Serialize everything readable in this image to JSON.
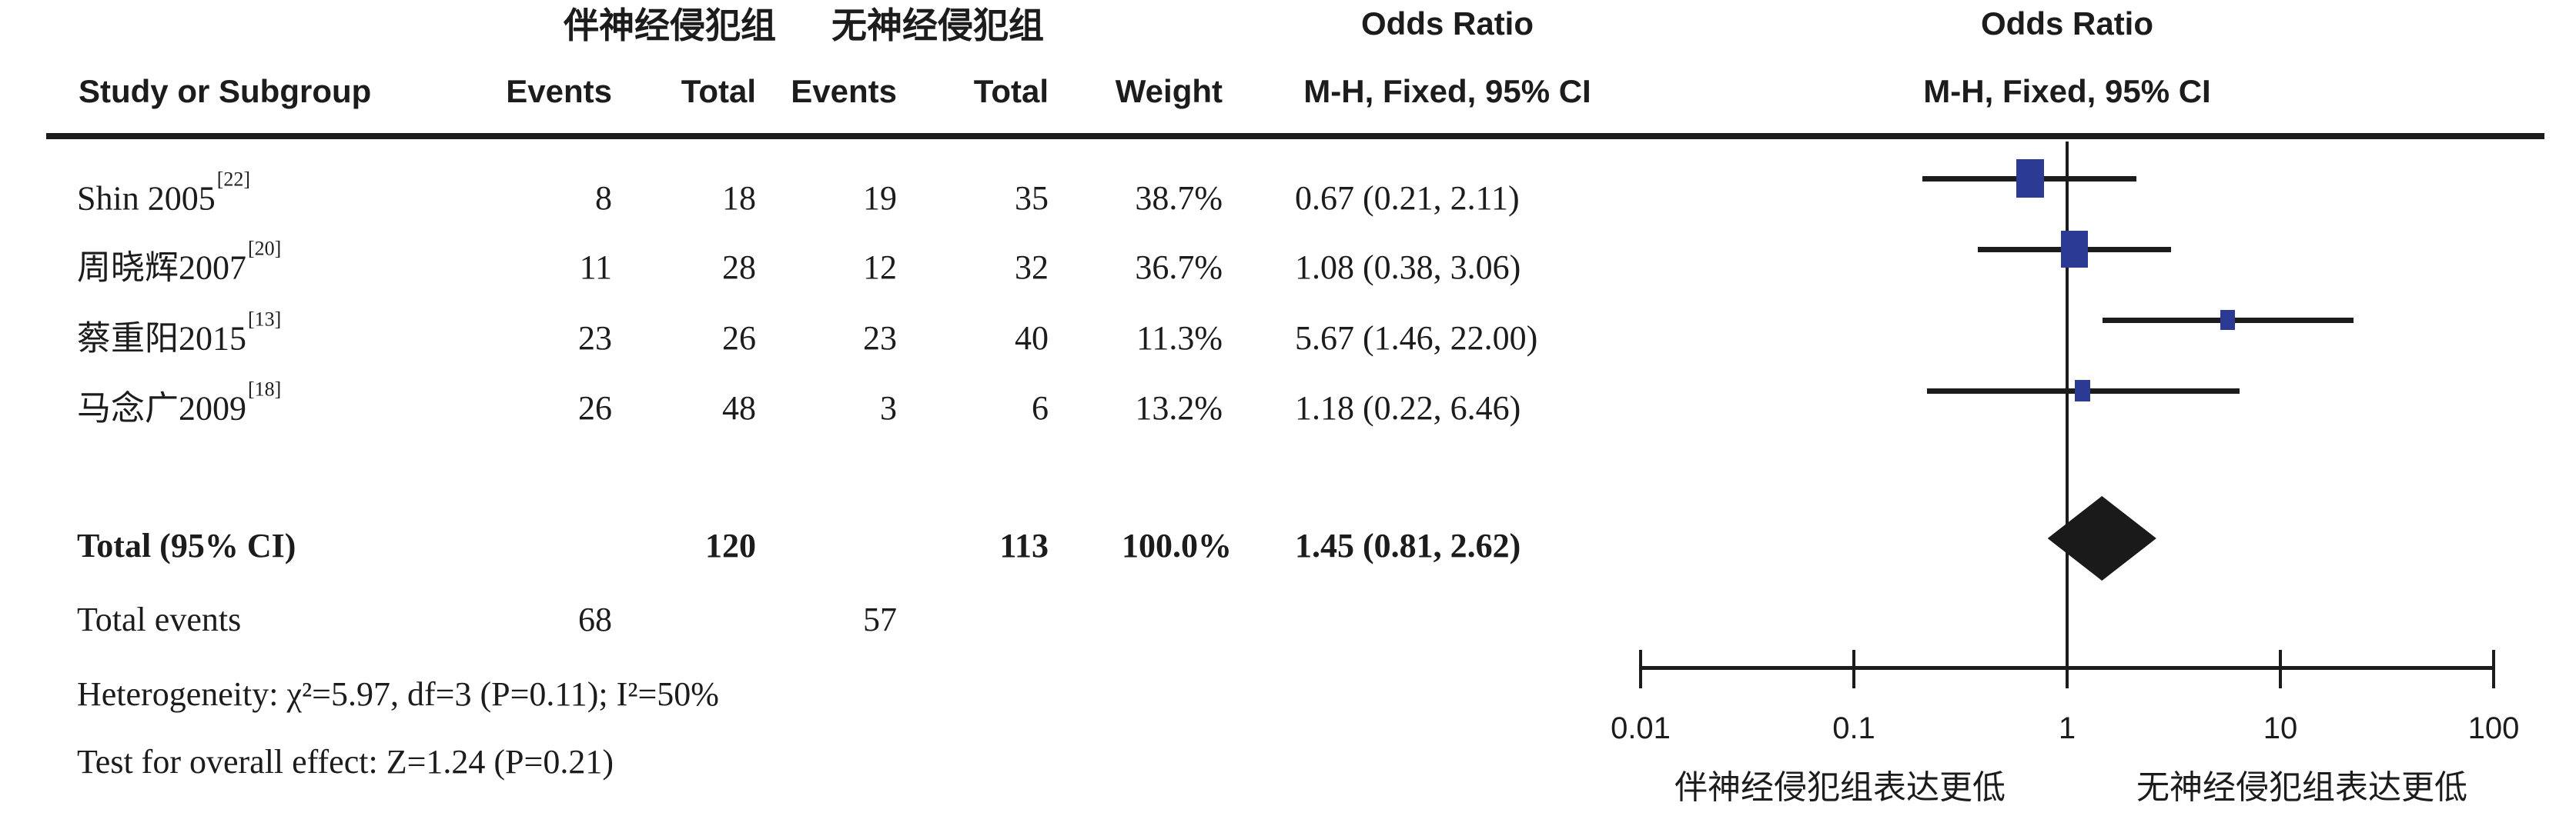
{
  "table": {
    "header": {
      "group1": "伴神经侵犯组",
      "group2": "无神经侵犯组",
      "study": "Study or Subgroup",
      "events": "Events",
      "total": "Total",
      "weight": "Weight",
      "odds_ratio": "Odds Ratio",
      "method_ci": "M-H, Fixed, 95% CI"
    },
    "rows": [
      {
        "study": "Shin 2005",
        "ref": "[22]",
        "events1": 8,
        "total1": 18,
        "events2": 19,
        "total2": 35,
        "weight": "38.7%",
        "or_ci": "0.67 (0.21, 2.11)"
      },
      {
        "study": "周晓辉2007",
        "ref": "[20]",
        "events1": 11,
        "total1": 28,
        "events2": 12,
        "total2": 32,
        "weight": "36.7%",
        "or_ci": "1.08 (0.38, 3.06)"
      },
      {
        "study": "蔡重阳2015",
        "ref": "[13]",
        "events1": 23,
        "total1": 26,
        "events2": 23,
        "total2": 40,
        "weight": "11.3%",
        "or_ci": "5.67 (1.46, 22.00)"
      },
      {
        "study": "马念广2009",
        "ref": "[18]",
        "events1": 26,
        "total1": 48,
        "events2": 3,
        "total2": 6,
        "weight": "13.2%",
        "or_ci": "1.18 (0.22, 6.46)"
      }
    ],
    "total_row": {
      "label": "Total (95% CI)",
      "total1": 120,
      "total2": 113,
      "weight": "100.0%",
      "or_ci": "1.45 (0.81, 2.62)"
    },
    "total_events": {
      "label": "Total events",
      "events1": 68,
      "events2": 57
    },
    "heterogeneity": "Heterogeneity: χ²=5.97, df=3 (P=0.11); I²=50%",
    "overall_effect": "Test for overall effect: Z=1.24 (P=0.21)"
  },
  "chart_data": {
    "type": "scatter",
    "subtype": "forest-plot",
    "effect_measure": "Odds Ratio",
    "method": "M-H, Fixed, 95% CI",
    "x_scale": "log10",
    "x_ticks": [
      0.01,
      0.1,
      1,
      10,
      100
    ],
    "xlim": [
      0.01,
      100
    ],
    "null_line": 1,
    "series": [
      {
        "name": "Shin 2005",
        "or": 0.67,
        "ci_low": 0.21,
        "ci_high": 2.11,
        "weight_pct": 38.7
      },
      {
        "name": "周晓辉2007",
        "or": 1.08,
        "ci_low": 0.38,
        "ci_high": 3.06,
        "weight_pct": 36.7
      },
      {
        "name": "蔡重阳2015",
        "or": 5.67,
        "ci_low": 1.46,
        "ci_high": 22.0,
        "weight_pct": 11.3
      },
      {
        "name": "马念广2009",
        "or": 1.18,
        "ci_low": 0.22,
        "ci_high": 6.46,
        "weight_pct": 13.2
      }
    ],
    "pooled": {
      "or": 1.45,
      "ci_low": 0.81,
      "ci_high": 2.62,
      "weight_pct": 100.0
    },
    "axis_label_left": "伴神经侵犯组表达更低",
    "axis_label_right": "无神经侵犯组表达更低",
    "marker_color": "#2b3a92",
    "line_color": "#1c1c1c"
  }
}
